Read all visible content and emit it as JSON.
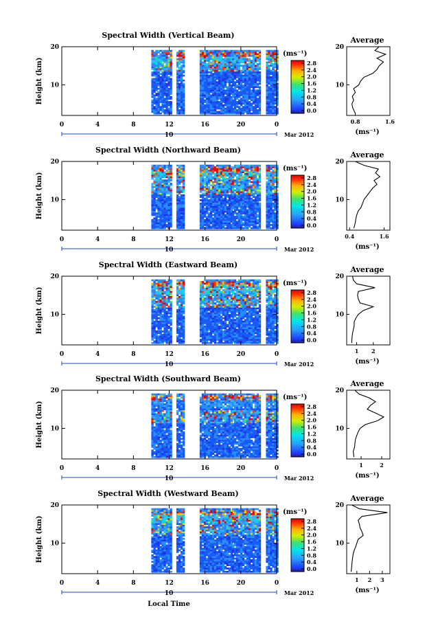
{
  "chart_data": [
    {
      "type": "heatmap",
      "title": "Spectral Width (Vertical Beam)",
      "ylabel": "Height (km)",
      "xlim": [
        0,
        24
      ],
      "ylim": [
        2,
        20
      ],
      "x_ticks": [
        "0",
        "4",
        "8",
        "12",
        "16",
        "20",
        "0"
      ],
      "y_ticks": [
        "20",
        "10"
      ],
      "date_marker": "10",
      "date_label": "Mar 2012",
      "colorbar": {
        "unit": "(ms⁻¹)",
        "ticks": [
          "2.8",
          "2.4",
          "2.0",
          "1.6",
          "1.2",
          "0.8",
          "0.4",
          "0.0"
        ],
        "range": [
          0,
          2.8
        ]
      },
      "coverage_segments": [
        [
          10,
          12.1
        ],
        [
          12.8,
          13.7
        ],
        [
          15.4,
          18.9
        ],
        [
          19.0,
          22.2
        ],
        [
          22.8,
          24
        ]
      ],
      "high_value_band_km": [
        13.5,
        17
      ],
      "average_profile": {
        "title": "Average",
        "xlabel": "(ms⁻¹)",
        "x_ticks": [
          "0.8",
          "1.6"
        ],
        "y_ticks": [
          "20",
          "10"
        ],
        "xlim": [
          0.6,
          1.6
        ],
        "height_km": [
          2.5,
          4,
          5,
          6,
          7,
          8,
          9,
          10,
          11,
          12,
          13,
          14,
          15,
          16,
          17,
          18,
          19,
          20
        ],
        "values": [
          0.8,
          0.74,
          0.72,
          0.76,
          0.73,
          0.8,
          0.76,
          0.88,
          0.92,
          1.0,
          1.2,
          1.3,
          1.35,
          1.45,
          1.3,
          1.5,
          1.25,
          1.35
        ]
      }
    },
    {
      "type": "heatmap",
      "title": "Spectral Width (Northward Beam)",
      "ylabel": "Height (km)",
      "xlim": [
        0,
        24
      ],
      "ylim": [
        2,
        20
      ],
      "x_ticks": [
        "0",
        "4",
        "8",
        "12",
        "16",
        "20",
        "0"
      ],
      "y_ticks": [
        "20",
        "10"
      ],
      "date_marker": "10",
      "date_label": "Mar 2012",
      "colorbar": {
        "unit": "(ms⁻¹)",
        "ticks": [
          "2.8",
          "2.4",
          "2.0",
          "1.6",
          "1.2",
          "0.8",
          "0.4",
          "0.0"
        ],
        "range": [
          0,
          2.8
        ]
      },
      "coverage_segments": [
        [
          10,
          12.1
        ],
        [
          12.8,
          13.7
        ],
        [
          15.4,
          18.9
        ],
        [
          19.0,
          22.2
        ],
        [
          22.8,
          24
        ]
      ],
      "high_value_band_km": [
        11,
        17.5
      ],
      "average_profile": {
        "title": "Average",
        "xlabel": "(ms⁻¹)",
        "x_ticks": [
          "0.4",
          "1.6"
        ],
        "y_ticks": [
          "20",
          "10"
        ],
        "xlim": [
          0.3,
          1.8
        ],
        "height_km": [
          2.5,
          4,
          5,
          6,
          7,
          8,
          9,
          10,
          11,
          12,
          13,
          14,
          15,
          16,
          17,
          18,
          19,
          20
        ],
        "values": [
          0.55,
          0.6,
          0.62,
          0.65,
          0.7,
          0.8,
          0.85,
          0.9,
          1.0,
          1.1,
          1.2,
          1.35,
          1.25,
          1.45,
          1.3,
          1.4,
          0.9,
          0.6
        ]
      }
    },
    {
      "type": "heatmap",
      "title": "Spectral Width (Eastward Beam)",
      "ylabel": "Height (km)",
      "xlim": [
        0,
        24
      ],
      "ylim": [
        2,
        20
      ],
      "x_ticks": [
        "0",
        "4",
        "8",
        "12",
        "16",
        "20",
        "0"
      ],
      "y_ticks": [
        "20",
        "10"
      ],
      "date_marker": "10",
      "date_label": "Mar 2012",
      "colorbar": {
        "unit": "(ms⁻¹)",
        "ticks": [
          "2.8",
          "2.4",
          "2.0",
          "1.6",
          "1.2",
          "0.8",
          "0.4",
          "0.0"
        ],
        "range": [
          0,
          2.8
        ]
      },
      "coverage_segments": [
        [
          10,
          12.1
        ],
        [
          12.8,
          13.7
        ],
        [
          15.4,
          18.9
        ],
        [
          19.0,
          22.2
        ],
        [
          22.8,
          24
        ]
      ],
      "high_value_band_km": [
        11.5,
        17.5
      ],
      "average_profile": {
        "title": "Average",
        "xlabel": "(ms⁻¹)",
        "x_ticks": [
          "1",
          "2"
        ],
        "y_ticks": [
          "20",
          "10"
        ],
        "xlim": [
          0.4,
          3.0
        ],
        "height_km": [
          2.5,
          4,
          5,
          6,
          7,
          8,
          9,
          10,
          11,
          12,
          13,
          14,
          15,
          16,
          17,
          18,
          19,
          20
        ],
        "values": [
          0.7,
          0.72,
          0.75,
          0.8,
          0.85,
          0.85,
          0.95,
          1.1,
          1.4,
          2.0,
          1.2,
          1.1,
          1.05,
          1.1,
          2.1,
          1.0,
          0.8,
          0.75
        ]
      }
    },
    {
      "type": "heatmap",
      "title": "Spectral Width (Southward Beam)",
      "ylabel": "Height (km)",
      "xlim": [
        0,
        24
      ],
      "ylim": [
        2,
        20
      ],
      "x_ticks": [
        "0",
        "4",
        "8",
        "12",
        "16",
        "20",
        "0"
      ],
      "y_ticks": [
        "20",
        "10"
      ],
      "date_marker": "10",
      "date_label": "Mar 2012",
      "colorbar": {
        "unit": "(ms⁻¹)",
        "ticks": [
          "2.8",
          "2.4",
          "2.0",
          "1.6",
          "1.2",
          "0.8",
          "0.4",
          "0.0"
        ],
        "range": [
          0,
          2.8
        ]
      },
      "coverage_segments": [
        [
          10,
          12.1
        ],
        [
          12.8,
          13.7
        ],
        [
          15.4,
          18.9
        ],
        [
          19.0,
          22.2
        ],
        [
          22.8,
          24
        ]
      ],
      "high_value_band_km": [
        11,
        14.5
      ],
      "average_profile": {
        "title": "Average",
        "xlabel": "(ms⁻¹)",
        "x_ticks": [
          "1",
          "2"
        ],
        "y_ticks": [
          "20",
          "10"
        ],
        "xlim": [
          0.3,
          2.4
        ],
        "height_km": [
          2.5,
          4,
          5,
          6,
          7,
          8,
          9,
          10,
          11,
          12,
          13,
          14,
          15,
          16,
          17,
          18,
          19,
          20
        ],
        "values": [
          0.65,
          0.62,
          0.68,
          0.7,
          0.72,
          0.78,
          0.85,
          0.95,
          1.2,
          1.8,
          2.1,
          1.7,
          1.3,
          1.45,
          1.7,
          1.4,
          0.9,
          0.7
        ]
      }
    },
    {
      "type": "heatmap",
      "title": "Spectral Width (Westward Beam)",
      "ylabel": "Height (km)",
      "xlim": [
        0,
        24
      ],
      "ylim": [
        2,
        20
      ],
      "x_ticks": [
        "0",
        "4",
        "8",
        "12",
        "16",
        "20",
        "0"
      ],
      "y_ticks": [
        "20",
        "10"
      ],
      "date_marker": "10",
      "date_label": "Mar 2012",
      "xlabel": "Local Time",
      "colorbar": {
        "unit": "(ms⁻¹)",
        "ticks": [
          "2.8",
          "2.4",
          "2.0",
          "1.6",
          "1.2",
          "0.8",
          "0.4",
          "0.0"
        ],
        "range": [
          0,
          2.8
        ]
      },
      "coverage_segments": [
        [
          10,
          12.1
        ],
        [
          12.8,
          13.7
        ],
        [
          15.4,
          18.9
        ],
        [
          19.0,
          22.2
        ],
        [
          22.8,
          24
        ]
      ],
      "high_value_band_km": [
        12,
        17.5
      ],
      "average_profile": {
        "title": "Average",
        "xlabel": "(ms⁻¹)",
        "x_ticks": [
          "1",
          "2",
          "3"
        ],
        "y_ticks": [
          "20",
          "10"
        ],
        "xlim": [
          0.2,
          3.6
        ],
        "height_km": [
          2.5,
          4,
          5,
          6,
          7,
          8,
          9,
          10,
          11,
          12,
          13,
          14,
          15,
          16,
          17,
          18,
          19,
          20
        ],
        "values": [
          0.55,
          0.6,
          0.62,
          0.66,
          0.7,
          0.78,
          0.9,
          1.0,
          1.1,
          1.5,
          1.4,
          1.25,
          1.2,
          1.1,
          1.4,
          3.4,
          1.2,
          0.6
        ]
      }
    }
  ]
}
